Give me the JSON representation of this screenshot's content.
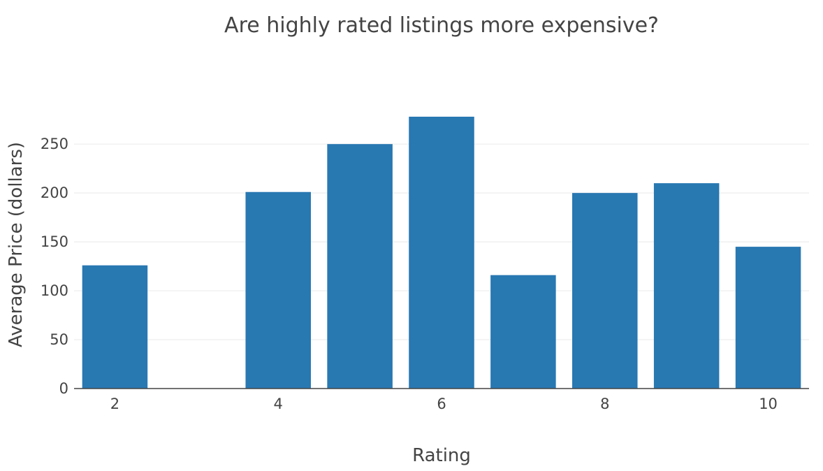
{
  "chart_data": {
    "type": "bar",
    "title": "Are highly rated listings more expensive?",
    "xlabel": "Rating",
    "ylabel": "Average Price (dollars)",
    "x": [
      2,
      4,
      5,
      6,
      7,
      8,
      9,
      10
    ],
    "values": [
      126,
      201,
      250,
      278,
      116,
      200,
      210,
      145
    ],
    "xlim": [
      1.5,
      10.5
    ],
    "ylim": [
      0,
      278
    ],
    "xticks": [
      2,
      4,
      6,
      8,
      10
    ],
    "yticks": [
      0,
      50,
      100,
      150,
      200,
      250
    ],
    "grid": true,
    "legend": "none",
    "bar_color": "#2878b2",
    "gridline_color": "#eeeeee",
    "text_color": "#444444"
  }
}
